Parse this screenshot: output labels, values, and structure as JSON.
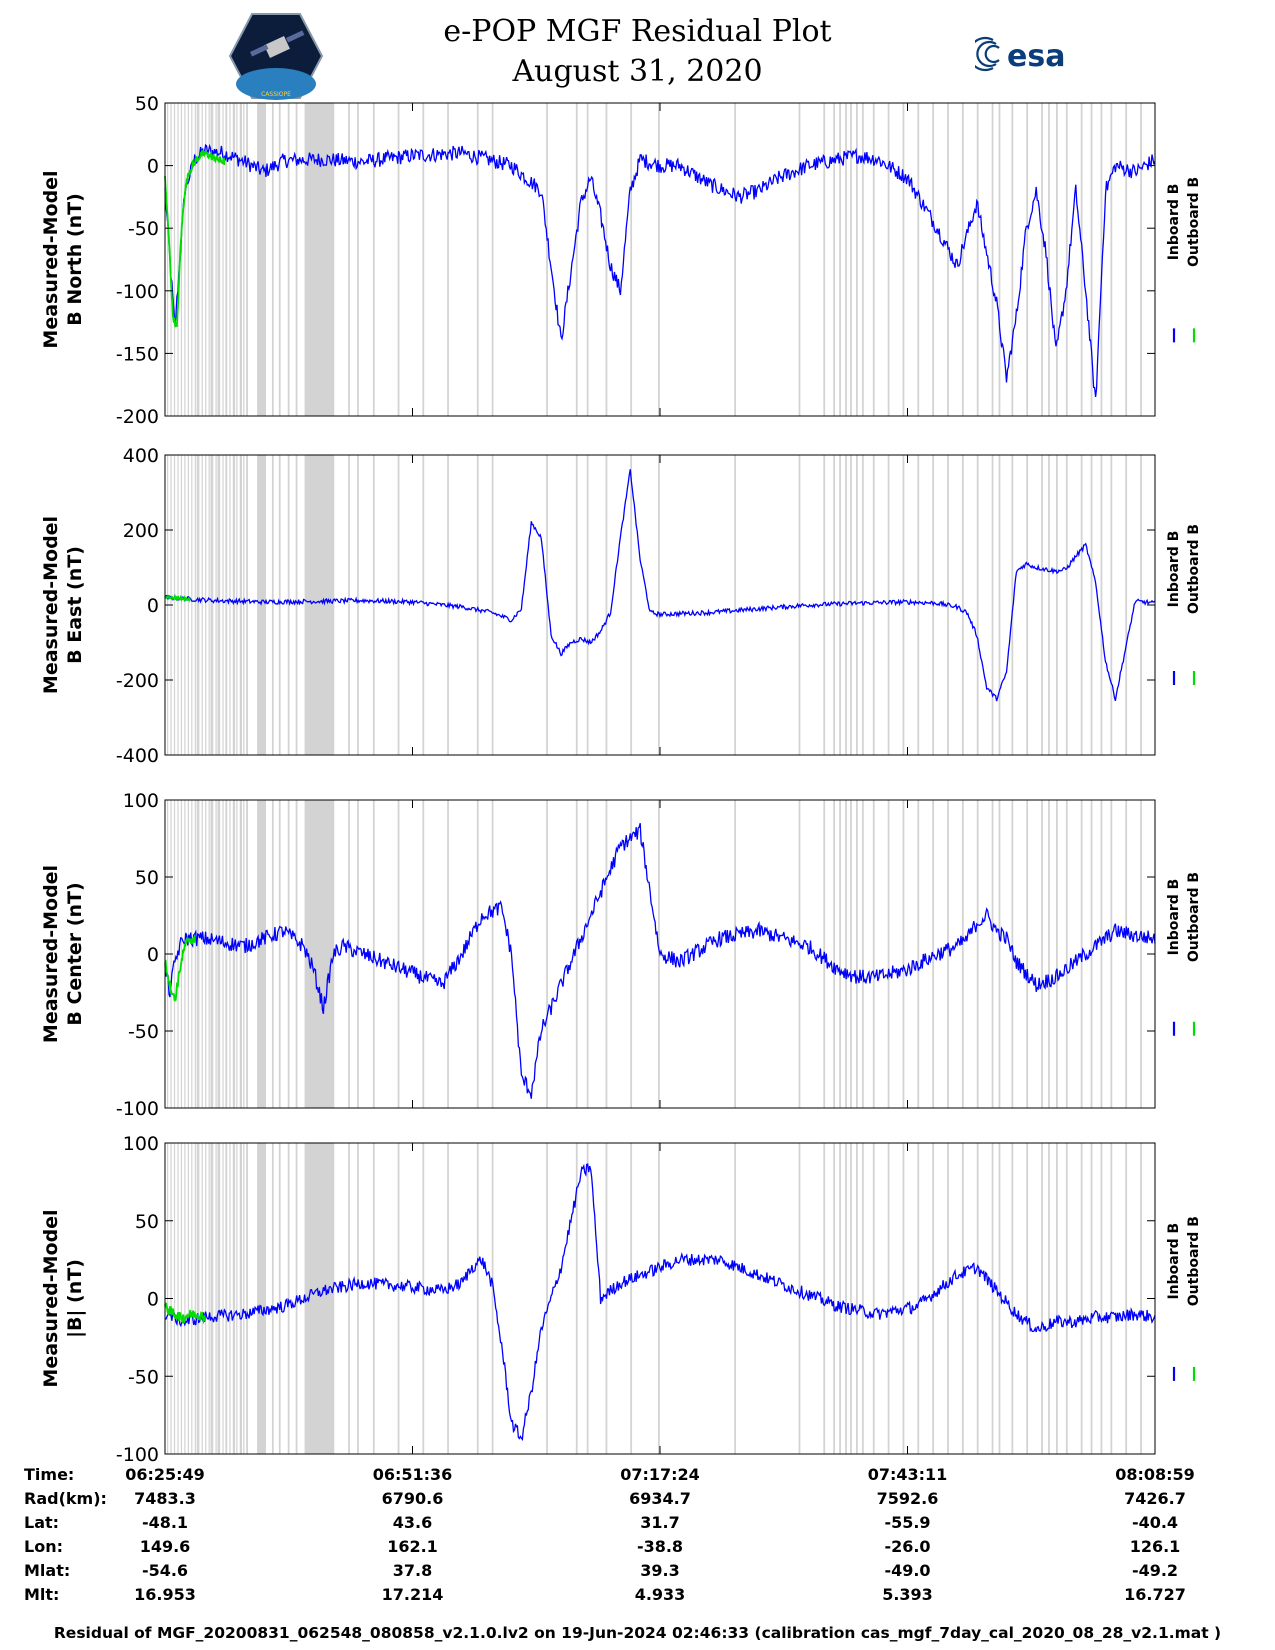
{
  "header": {
    "title_line1": "e-POP MGF Residual Plot",
    "title_line2": "August 31, 2020",
    "left_logo_caption": "CASSIOPE",
    "right_logo_text": "esa"
  },
  "legend": {
    "inboard": "Inboard B",
    "outboard": "Outboard B"
  },
  "colors": {
    "inboard": "#0000ff",
    "outboard": "#00dd00",
    "gap": "#d3d3d3"
  },
  "chart_data": [
    {
      "type": "line",
      "id": "bnorth",
      "ylabel_line1": "Measured-Model",
      "ylabel_line2": "B North (nT)",
      "ylim": [
        -200,
        50
      ],
      "yticks": [
        -200,
        -150,
        -100,
        -50,
        0,
        50
      ],
      "xlim": [
        0,
        100
      ],
      "series": [
        {
          "name": "Inboard B",
          "x": [
            0,
            1,
            2,
            3,
            4,
            6,
            8,
            10,
            12,
            16,
            20,
            25,
            30,
            35,
            38,
            40,
            42,
            43,
            44,
            45,
            46,
            47,
            48,
            50,
            52,
            55,
            58,
            60,
            62,
            65,
            68,
            70,
            72,
            75,
            78,
            80,
            82,
            84,
            85,
            86,
            87,
            88,
            89,
            90,
            91,
            92,
            93,
            94,
            95,
            96,
            98,
            100
          ],
          "y": [
            -20,
            -130,
            -20,
            5,
            12,
            10,
            3,
            -5,
            4,
            5,
            3,
            8,
            10,
            0,
            -20,
            -140,
            -30,
            -10,
            -40,
            -80,
            -100,
            -20,
            5,
            0,
            0,
            -15,
            -25,
            -20,
            -10,
            0,
            5,
            8,
            5,
            -10,
            -50,
            -80,
            -30,
            -110,
            -170,
            -120,
            -50,
            -20,
            -70,
            -150,
            -100,
            -20,
            -100,
            -190,
            -20,
            0,
            -5,
            5
          ],
          "noise": 6
        },
        {
          "name": "Outboard B",
          "x": [
            0,
            0.4,
            0.8,
            1.2,
            1.6,
            2,
            2.4,
            2.8,
            3.2,
            3.6,
            4,
            5,
            6
          ],
          "y": [
            -10,
            -60,
            -120,
            -130,
            -60,
            -20,
            -5,
            0,
            5,
            8,
            10,
            6,
            3
          ],
          "noise": 3
        }
      ]
    },
    {
      "type": "line",
      "id": "beast",
      "ylabel_line1": "Measured-Model",
      "ylabel_line2": "B East (nT)",
      "ylim": [
        -400,
        400
      ],
      "yticks": [
        -400,
        -200,
        0,
        200,
        400
      ],
      "xlim": [
        0,
        100
      ],
      "series": [
        {
          "name": "Inboard B",
          "x": [
            0,
            5,
            10,
            16,
            20,
            25,
            30,
            33,
            35,
            36,
            37,
            38,
            39,
            40,
            41,
            42,
            43,
            44,
            45,
            46,
            47,
            48,
            49,
            50,
            55,
            60,
            65,
            70,
            75,
            78,
            80,
            81,
            82,
            83,
            84,
            85,
            86,
            87,
            88,
            89,
            90,
            91,
            92,
            93,
            94,
            95,
            96,
            98,
            100
          ],
          "y": [
            20,
            12,
            8,
            10,
            12,
            8,
            -5,
            -20,
            -40,
            -10,
            220,
            180,
            -80,
            -130,
            -100,
            -90,
            -100,
            -70,
            -20,
            180,
            360,
            120,
            -20,
            -25,
            -20,
            -10,
            0,
            5,
            8,
            5,
            -5,
            -20,
            -80,
            -220,
            -250,
            -180,
            90,
            110,
            100,
            95,
            90,
            95,
            130,
            160,
            60,
            -150,
            -250,
            10,
            5
          ],
          "noise": 6
        },
        {
          "name": "Outboard B",
          "x": [
            0,
            0.5,
            1,
            1.5,
            2,
            2.5
          ],
          "y": [
            22,
            20,
            19,
            18,
            17,
            16
          ],
          "noise": 3
        }
      ]
    },
    {
      "type": "line",
      "id": "bcenter",
      "ylabel_line1": "Measured-Model",
      "ylabel_line2": "B Center (nT)",
      "ylim": [
        -100,
        100
      ],
      "yticks": [
        -100,
        -50,
        0,
        50,
        100
      ],
      "xlim": [
        0,
        100
      ],
      "series": [
        {
          "name": "Inboard B",
          "x": [
            0,
            0.5,
            1,
            1.5,
            2,
            4,
            8,
            12,
            14,
            15,
            16,
            17,
            18,
            20,
            24,
            28,
            30,
            32,
            34,
            35,
            36,
            37,
            38,
            40,
            42,
            44,
            46,
            48,
            50,
            52,
            56,
            60,
            65,
            68,
            70,
            72,
            75,
            78,
            80,
            81,
            82,
            83,
            84,
            85,
            86,
            88,
            90,
            92,
            94,
            96,
            98,
            100
          ],
          "y": [
            -10,
            -25,
            -5,
            5,
            10,
            10,
            5,
            15,
            5,
            -10,
            -35,
            0,
            5,
            0,
            -10,
            -20,
            0,
            25,
            30,
            0,
            -80,
            -90,
            -50,
            -20,
            10,
            40,
            70,
            80,
            0,
            -5,
            10,
            15,
            5,
            -10,
            -15,
            -15,
            -10,
            0,
            5,
            10,
            20,
            25,
            15,
            10,
            -5,
            -20,
            -15,
            -5,
            5,
            15,
            12,
            10
          ],
          "noise": 5
        },
        {
          "name": "Outboard B",
          "x": [
            0,
            0.5,
            1,
            1.5,
            2,
            2.5,
            3
          ],
          "y": [
            -5,
            -20,
            -30,
            -10,
            5,
            10,
            8
          ],
          "noise": 3
        }
      ]
    },
    {
      "type": "line",
      "id": "bmag",
      "ylabel_line1": "Measured-Model",
      "ylabel_line2": "|B| (nT)",
      "ylim": [
        -100,
        100
      ],
      "yticks": [
        -100,
        -50,
        0,
        50,
        100
      ],
      "xlim": [
        0,
        100
      ],
      "series": [
        {
          "name": "Inboard B",
          "x": [
            0,
            2,
            4,
            8,
            12,
            16,
            20,
            24,
            28,
            30,
            31,
            32,
            33,
            34,
            35,
            36,
            37,
            38,
            39,
            40,
            41,
            42,
            43,
            44,
            45,
            46,
            48,
            50,
            52,
            56,
            60,
            64,
            68,
            72,
            76,
            78,
            80,
            82,
            84,
            86,
            88,
            90,
            92,
            94,
            96,
            98,
            100
          ],
          "y": [
            -10,
            -15,
            -12,
            -10,
            -5,
            5,
            10,
            8,
            5,
            10,
            20,
            25,
            10,
            -30,
            -80,
            -90,
            -60,
            -20,
            0,
            20,
            50,
            80,
            85,
            0,
            5,
            10,
            15,
            20,
            25,
            25,
            15,
            5,
            -5,
            -10,
            -5,
            5,
            15,
            20,
            5,
            -10,
            -20,
            -15,
            -15,
            -12,
            -12,
            -10,
            -12
          ],
          "noise": 4
        },
        {
          "name": "Outboard B",
          "x": [
            0,
            0.5,
            1,
            1.5,
            2,
            2.5,
            3,
            4
          ],
          "y": [
            -5,
            -8,
            -10,
            -12,
            -12,
            -10,
            -10,
            -12
          ],
          "noise": 3
        }
      ]
    }
  ],
  "x_axis": {
    "tick_labels": [
      "06:25:49",
      "06:51:36",
      "07:17:24",
      "07:43:11",
      "08:08:59"
    ]
  },
  "info_table": {
    "rows": [
      {
        "label": "Time:",
        "values": [
          "06:25:49",
          "06:51:36",
          "07:17:24",
          "07:43:11",
          "08:08:59"
        ]
      },
      {
        "label": "Rad(km):",
        "values": [
          "7483.3",
          "6790.6",
          "6934.7",
          "7592.6",
          "7426.7"
        ]
      },
      {
        "label": "Lat:",
        "values": [
          "-48.1",
          "43.6",
          "31.7",
          "-55.9",
          "-40.4"
        ]
      },
      {
        "label": "Lon:",
        "values": [
          "149.6",
          "162.1",
          "-38.8",
          "-26.0",
          "126.1"
        ]
      },
      {
        "label": "Mlat:",
        "values": [
          "-54.6",
          "37.8",
          "39.3",
          "-49.0",
          "-49.2"
        ]
      },
      {
        "label": "Mlt:",
        "values": [
          "16.953",
          "17.214",
          "4.933",
          "5.393",
          "16.727"
        ]
      }
    ]
  },
  "footer": "Residual of MGF_20200831_062548_080858_v2.1.0.lv2 on 19-Jun-2024 02:46:33 (calibration cas_mgf_7day_cal_2020_08_28_v2.1.mat )"
}
